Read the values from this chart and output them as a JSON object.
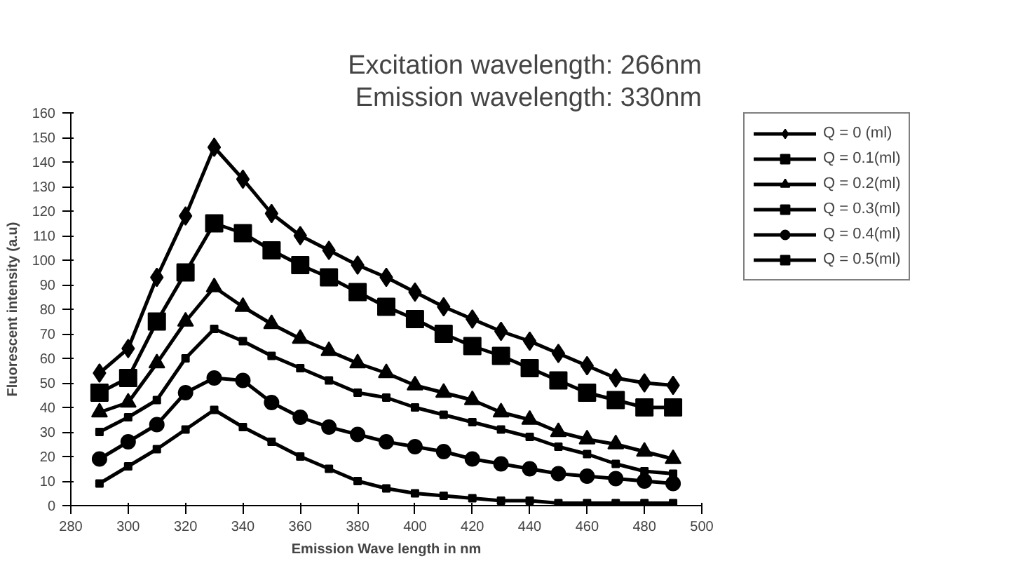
{
  "chart_data": {
    "type": "line",
    "title": "Excitation wavelength: 266nm",
    "subtitle": "Emission wavelength: 330nm",
    "xlabel": "Emission Wave length in nm",
    "ylabel": "Fluorescent intensity (a.u)",
    "x": [
      290,
      300,
      310,
      320,
      330,
      340,
      350,
      360,
      370,
      380,
      390,
      400,
      410,
      420,
      430,
      440,
      450,
      460,
      470,
      480,
      490
    ],
    "xlim": [
      280,
      500
    ],
    "xticks": [
      280,
      300,
      320,
      340,
      360,
      380,
      400,
      420,
      440,
      460,
      480,
      500
    ],
    "ylim": [
      0,
      160
    ],
    "yticks": [
      0,
      10,
      20,
      30,
      40,
      50,
      60,
      70,
      80,
      90,
      100,
      110,
      120,
      130,
      140,
      150,
      160
    ],
    "grid": false,
    "legend": "right",
    "line_style": "solid",
    "series": [
      {
        "name": "Q = 0 (ml)",
        "color": "#000000",
        "marker": "diamond",
        "values": [
          54,
          64,
          93,
          118,
          146,
          133,
          119,
          110,
          104,
          98,
          93,
          87,
          81,
          76,
          71,
          67,
          62,
          57,
          52,
          50,
          49
        ]
      },
      {
        "name": "Q = 0.1(ml)",
        "color": "#000000",
        "marker": "square",
        "values": [
          46,
          52,
          75,
          95,
          115,
          111,
          104,
          98,
          93,
          87,
          81,
          76,
          70,
          65,
          61,
          56,
          51,
          46,
          43,
          40,
          40
        ]
      },
      {
        "name": "Q = 0.2(ml)",
        "color": "#000000",
        "marker": "triangle",
        "values": [
          38,
          42,
          58,
          75,
          89,
          81,
          74,
          68,
          63,
          58,
          54,
          49,
          46,
          43,
          38,
          35,
          30,
          27,
          25,
          22,
          19
        ]
      },
      {
        "name": "Q = 0.3(ml)",
        "color": "#000000",
        "marker": "square",
        "values": [
          30,
          36,
          43,
          60,
          72,
          67,
          61,
          56,
          51,
          46,
          44,
          40,
          37,
          34,
          31,
          28,
          24,
          21,
          17,
          14,
          13
        ]
      },
      {
        "name": "Q = 0.4(ml)",
        "color": "#000000",
        "marker": "circle",
        "values": [
          19,
          26,
          33,
          46,
          52,
          51,
          42,
          36,
          32,
          29,
          26,
          24,
          22,
          19,
          17,
          15,
          13,
          12,
          11,
          10,
          9
        ]
      },
      {
        "name": "Q = 0.5(ml)",
        "color": "#000000",
        "marker": "square",
        "values": [
          9,
          16,
          23,
          31,
          39,
          32,
          26,
          20,
          15,
          10,
          7,
          5,
          4,
          3,
          2,
          2,
          1,
          1,
          1,
          1,
          1
        ]
      }
    ]
  }
}
